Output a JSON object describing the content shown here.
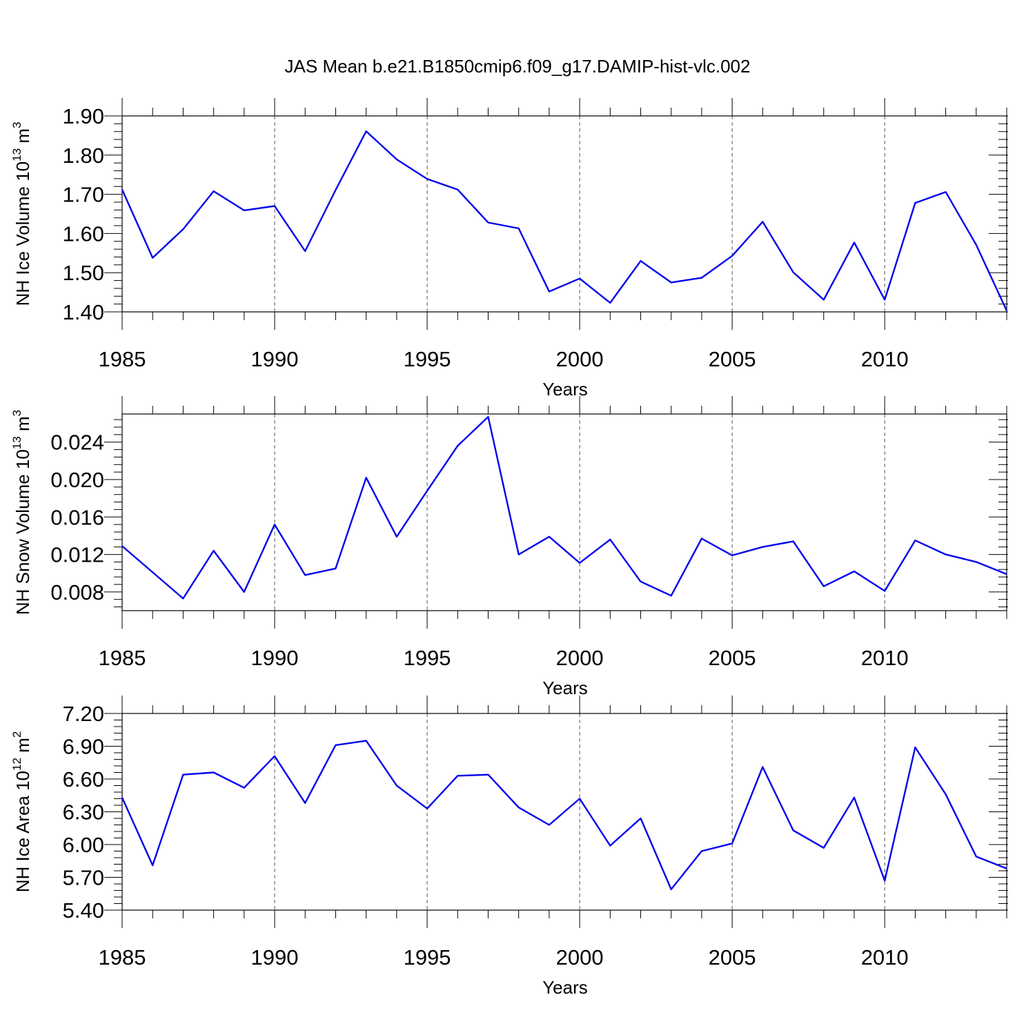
{
  "title": "JAS Mean b.e21.B1850cmip6.f09_g17.DAMIP-hist-vlc.002",
  "colors": {
    "series": "#0000ee",
    "axis": "#000000",
    "grid": "#555555"
  },
  "chart_data": [
    {
      "type": "line",
      "ylabel_main": "NH Ice Volume 10",
      "ylabel_exp": "13",
      "ylabel_unit": " m",
      "ylabel_unit_exp": "3",
      "xlabel": "Years",
      "xlim": [
        1985,
        2014
      ],
      "ylim": [
        1.4,
        1.9
      ],
      "yticks": [
        1.4,
        1.5,
        1.6,
        1.7,
        1.8,
        1.9
      ],
      "ytick_labels": [
        "1.40",
        "1.50",
        "1.60",
        "1.70",
        "1.80",
        "1.90"
      ],
      "xticks": [
        1985,
        1990,
        1995,
        2000,
        2005,
        2010
      ],
      "xtick_labels": [
        "1985",
        "1990",
        "1995",
        "2000",
        "2005",
        "2010"
      ],
      "grid_x": [
        1990,
        1995,
        2000,
        2005,
        2010
      ],
      "x": [
        1985,
        1986,
        1987,
        1988,
        1989,
        1990,
        1991,
        1992,
        1993,
        1994,
        1995,
        1996,
        1997,
        1998,
        1999,
        2000,
        2001,
        2002,
        2003,
        2004,
        2005,
        2006,
        2007,
        2008,
        2009,
        2010,
        2011,
        2012,
        2013,
        2014
      ],
      "y": [
        1.712,
        1.538,
        1.611,
        1.708,
        1.659,
        1.67,
        1.555,
        1.711,
        1.861,
        1.789,
        1.739,
        1.712,
        1.628,
        1.613,
        1.452,
        1.485,
        1.423,
        1.53,
        1.475,
        1.487,
        1.543,
        1.63,
        1.501,
        1.431,
        1.577,
        1.431,
        1.678,
        1.706,
        1.571,
        1.403
      ]
    },
    {
      "type": "line",
      "ylabel_main": "NH Snow Volume 10",
      "ylabel_exp": "13",
      "ylabel_unit": " m",
      "ylabel_unit_exp": "3",
      "xlabel": "Years",
      "xlim": [
        1985,
        2014
      ],
      "ylim": [
        0.006,
        0.027
      ],
      "yticks": [
        0.008,
        0.012,
        0.016,
        0.02,
        0.024
      ],
      "ytick_labels": [
        "0.008",
        "0.012",
        "0.016",
        "0.020",
        "0.024"
      ],
      "xticks": [
        1985,
        1990,
        1995,
        2000,
        2005,
        2010
      ],
      "xtick_labels": [
        "1985",
        "1990",
        "1995",
        "2000",
        "2005",
        "2010"
      ],
      "grid_x": [
        1990,
        1995,
        2000,
        2005,
        2010
      ],
      "x": [
        1985,
        1986,
        1987,
        1988,
        1989,
        1990,
        1991,
        1992,
        1993,
        1994,
        1995,
        1996,
        1997,
        1998,
        1999,
        2000,
        2001,
        2002,
        2003,
        2004,
        2005,
        2006,
        2007,
        2008,
        2009,
        2010,
        2011,
        2012,
        2013,
        2014
      ],
      "y": [
        0.0129,
        0.0101,
        0.0073,
        0.0124,
        0.008,
        0.0152,
        0.0098,
        0.0105,
        0.0202,
        0.0139,
        0.0188,
        0.0236,
        0.0267,
        0.012,
        0.0139,
        0.0111,
        0.0136,
        0.0091,
        0.0076,
        0.0137,
        0.0119,
        0.0128,
        0.0134,
        0.0086,
        0.0102,
        0.0081,
        0.0135,
        0.012,
        0.0112,
        0.0099
      ]
    },
    {
      "type": "line",
      "ylabel_main": "NH Ice Area 10",
      "ylabel_exp": "12",
      "ylabel_unit": " m",
      "ylabel_unit_exp": "2",
      "xlabel": "Years",
      "xlim": [
        1985,
        2014
      ],
      "ylim": [
        5.4,
        7.2
      ],
      "yticks": [
        5.4,
        5.7,
        6.0,
        6.3,
        6.6,
        6.9,
        7.2
      ],
      "ytick_labels": [
        "5.40",
        "5.70",
        "6.00",
        "6.30",
        "6.60",
        "6.90",
        "7.20"
      ],
      "xticks": [
        1985,
        1990,
        1995,
        2000,
        2005,
        2010
      ],
      "xtick_labels": [
        "1985",
        "1990",
        "1995",
        "2000",
        "2005",
        "2010"
      ],
      "grid_x": [
        1990,
        1995,
        2000,
        2005,
        2010
      ],
      "x": [
        1985,
        1986,
        1987,
        1988,
        1989,
        1990,
        1991,
        1992,
        1993,
        1994,
        1995,
        1996,
        1997,
        1998,
        1999,
        2000,
        2001,
        2002,
        2003,
        2004,
        2005,
        2006,
        2007,
        2008,
        2009,
        2010,
        2011,
        2012,
        2013,
        2014
      ],
      "y": [
        6.43,
        5.81,
        6.64,
        6.66,
        6.52,
        6.81,
        6.38,
        6.91,
        6.95,
        6.54,
        6.33,
        6.63,
        6.64,
        6.34,
        6.18,
        6.42,
        5.99,
        6.24,
        5.59,
        5.94,
        6.01,
        6.71,
        6.13,
        5.97,
        6.43,
        5.67,
        6.89,
        6.46,
        5.89,
        5.78
      ]
    }
  ]
}
